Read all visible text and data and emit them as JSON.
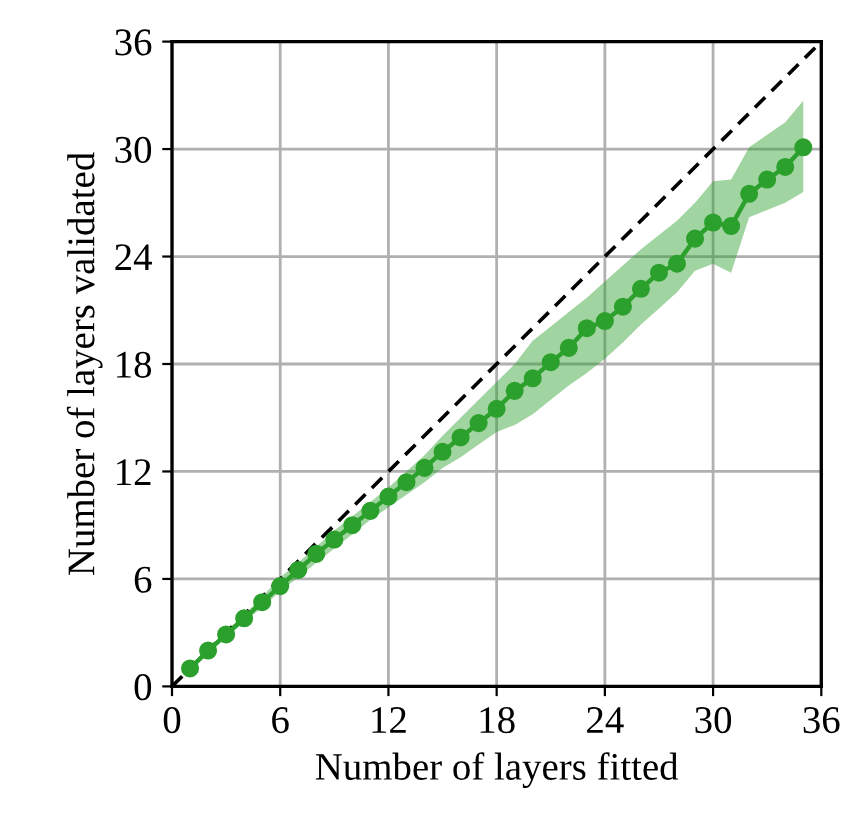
{
  "chart_data": {
    "type": "line",
    "xlabel": "Number of layers fitted",
    "ylabel": "Number of layers validated",
    "xlim": [
      0,
      36
    ],
    "ylim": [
      0,
      36
    ],
    "xticks": [
      0,
      6,
      12,
      18,
      24,
      30,
      36
    ],
    "yticks": [
      0,
      6,
      12,
      18,
      24,
      30,
      36
    ],
    "grid": true,
    "series": [
      {
        "color": "#000000",
        "x": [
          0,
          36
        ],
        "values": [
          0,
          36
        ],
        "line_style": "dashed",
        "marker": "none"
      },
      {
        "color": "#2ca02c",
        "marker": "circle",
        "line_style": "solid",
        "x": [
          1,
          2,
          3,
          4,
          5,
          6,
          7,
          8,
          9,
          10,
          11,
          12,
          13,
          14,
          15,
          16,
          17,
          18,
          19,
          20,
          21,
          22,
          23,
          24,
          25,
          26,
          27,
          28,
          29,
          30,
          31,
          32,
          33,
          34,
          35
        ],
        "values": [
          1.0,
          2.0,
          2.9,
          3.8,
          4.7,
          5.6,
          6.5,
          7.4,
          8.2,
          9.0,
          9.8,
          10.6,
          11.4,
          12.2,
          13.1,
          13.9,
          14.7,
          15.5,
          16.5,
          17.2,
          18.1,
          18.9,
          20.0,
          20.4,
          21.2,
          22.2,
          23.1,
          23.6,
          25.0,
          25.9,
          25.7,
          27.5,
          28.3,
          29.0,
          30.1
        ],
        "lower": [
          0.9,
          1.8,
          2.7,
          3.6,
          4.4,
          5.3,
          6.1,
          6.9,
          7.7,
          8.5,
          9.3,
          10.0,
          10.7,
          11.4,
          12.2,
          12.8,
          13.5,
          14.2,
          14.6,
          15.2,
          16.0,
          16.8,
          17.5,
          18.3,
          19.2,
          20.2,
          21.1,
          22.0,
          23.2,
          23.6,
          23.1,
          26.2,
          26.6,
          27.0,
          27.6
        ],
        "upper": [
          1.1,
          2.1,
          3.1,
          4.0,
          5.0,
          6.1,
          6.9,
          7.8,
          8.7,
          9.5,
          10.3,
          11.1,
          12.0,
          12.9,
          14.0,
          15.0,
          16.0,
          17.0,
          18.0,
          19.3,
          20.1,
          20.9,
          21.7,
          22.6,
          23.5,
          24.4,
          25.2,
          26.0,
          27.0,
          28.2,
          28.3,
          30.1,
          30.8,
          31.5,
          32.7
        ]
      }
    ]
  }
}
